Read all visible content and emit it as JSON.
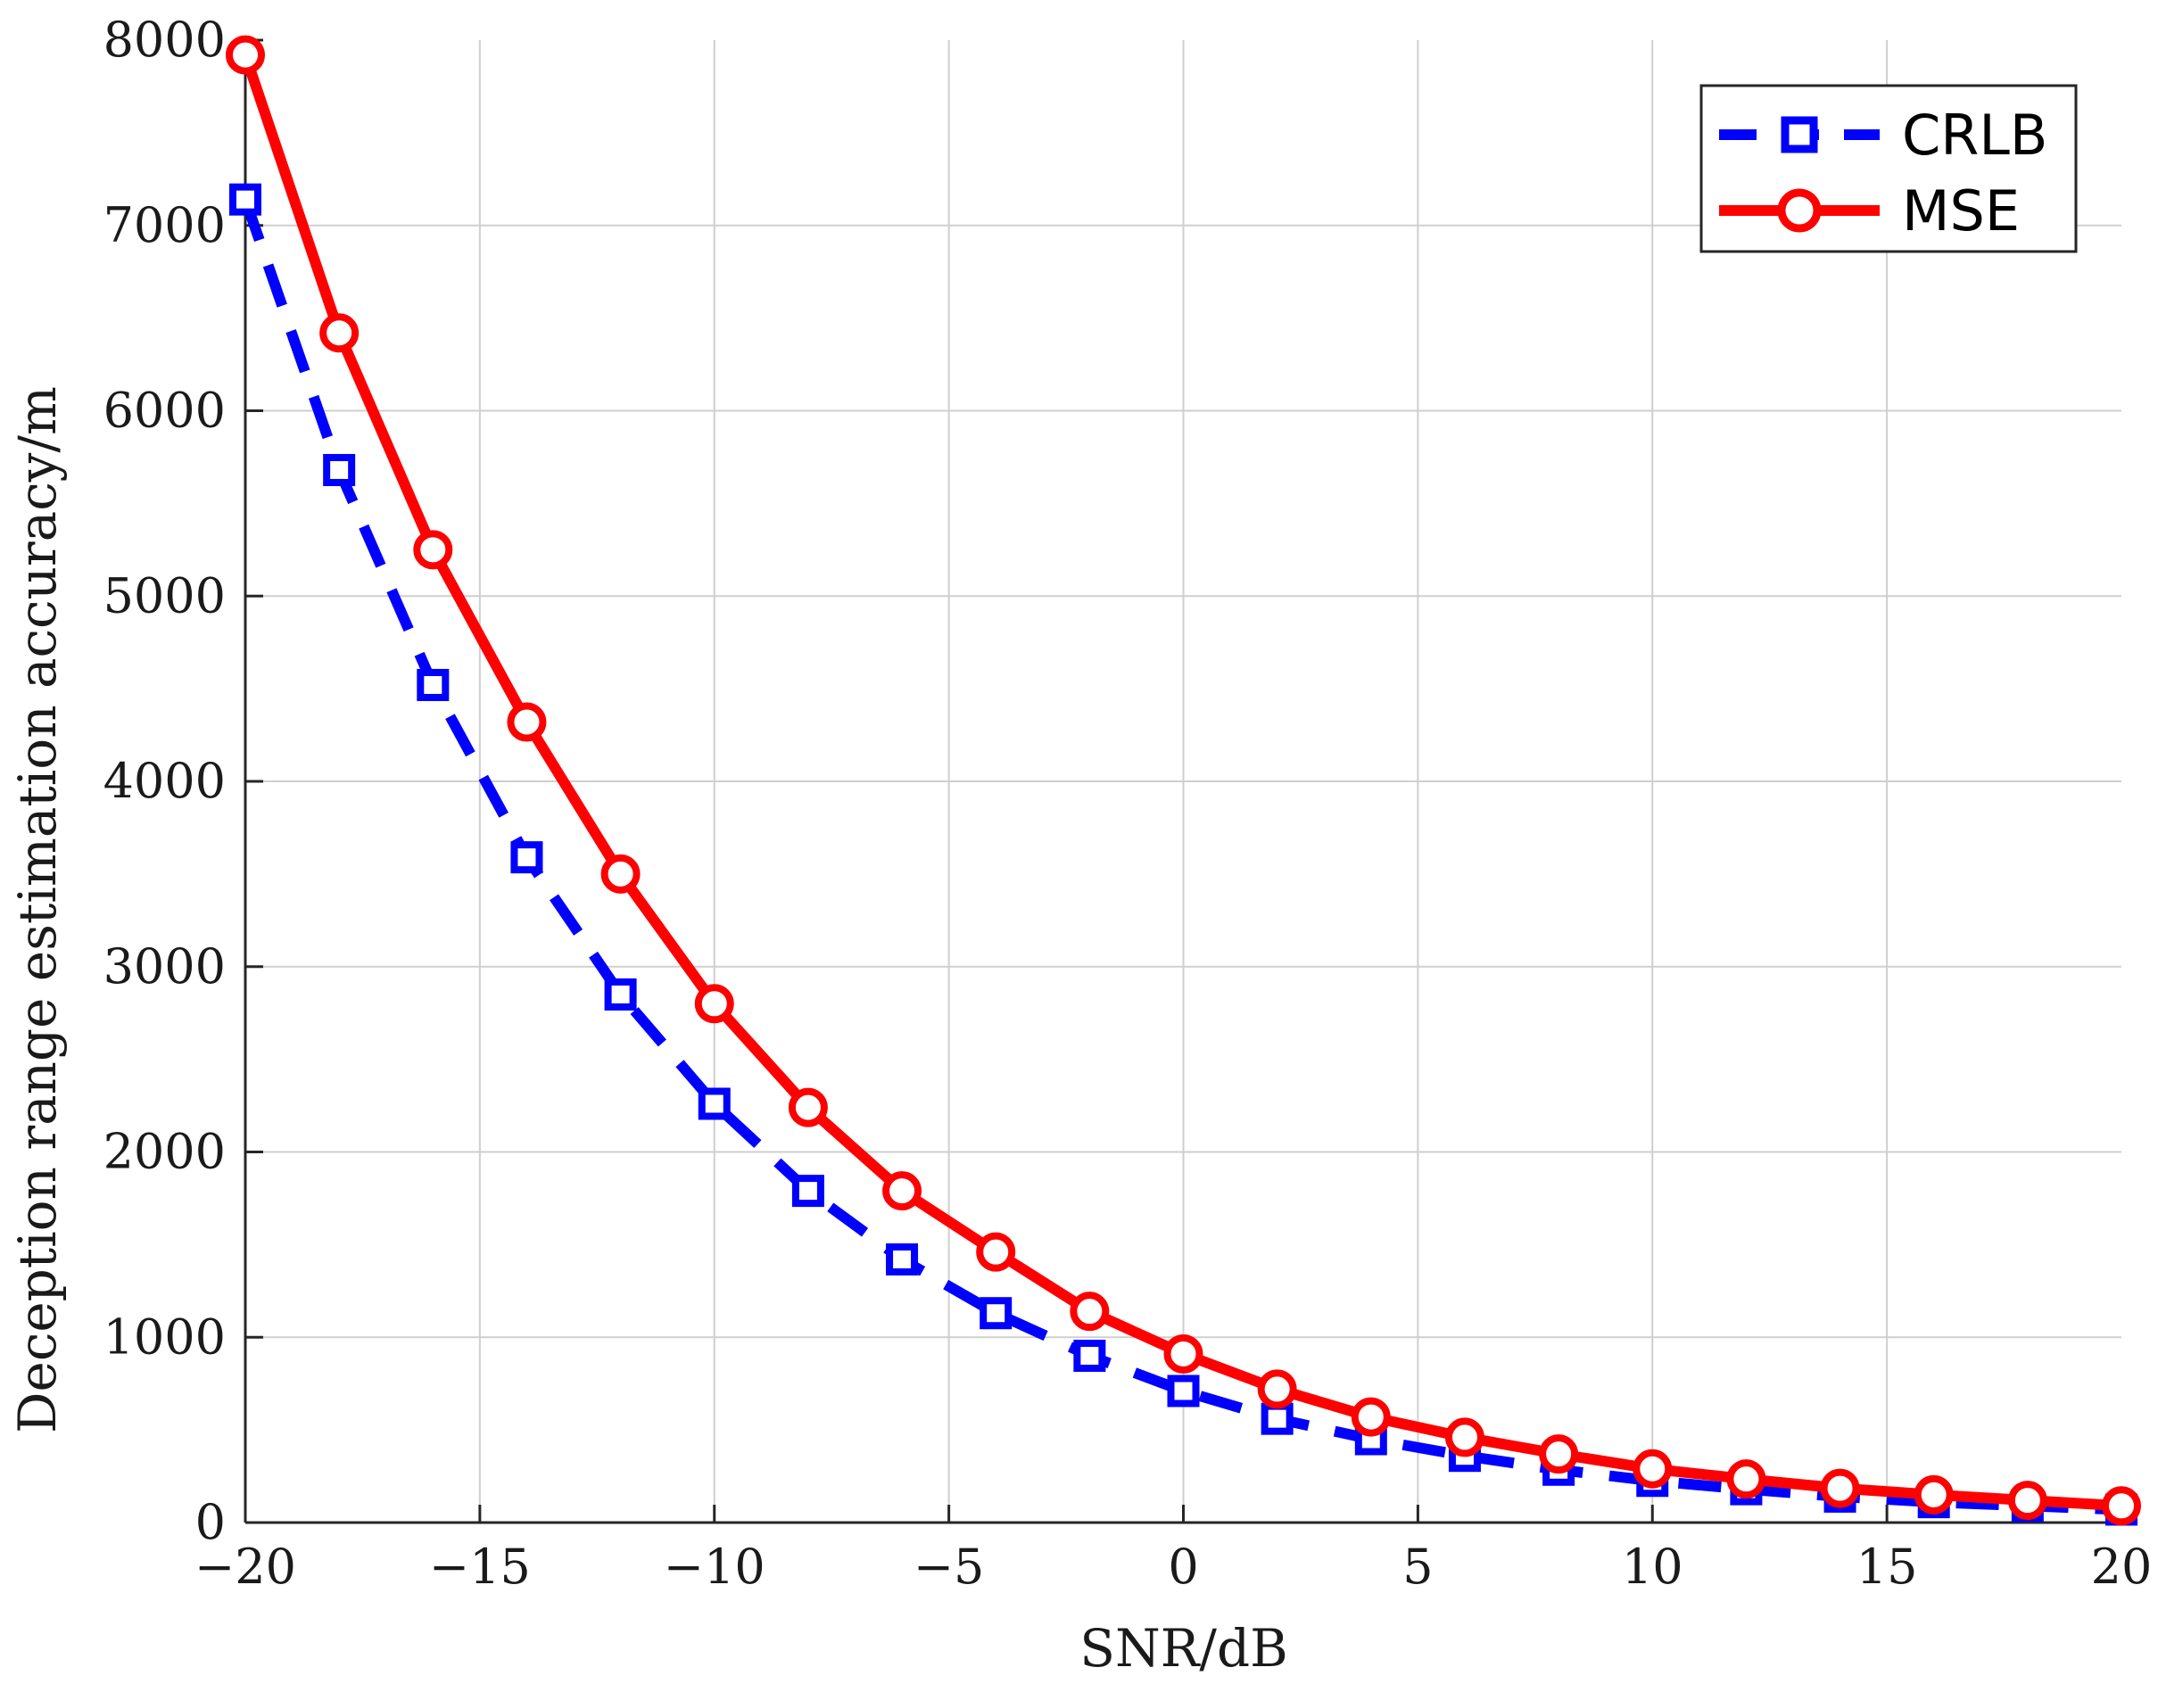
{
  "chart_data": {
    "type": "line",
    "xlabel": "SNR/dB",
    "ylabel": "Deception range estimation accuracy/m",
    "xlim": [
      -20,
      20
    ],
    "ylim": [
      0,
      8000
    ],
    "xticks": [
      -20,
      -15,
      -10,
      -5,
      0,
      5,
      10,
      15,
      20
    ],
    "xtick_labels": [
      "−20",
      "−15",
      "−10",
      "−5",
      "0",
      "5",
      "10",
      "15",
      "20"
    ],
    "yticks": [
      0,
      1000,
      2000,
      3000,
      4000,
      5000,
      6000,
      7000,
      8000
    ],
    "ytick_labels": [
      "0",
      "1000",
      "2000",
      "3000",
      "4000",
      "5000",
      "6000",
      "7000",
      "8000"
    ],
    "grid": true,
    "legend_position": "top-right",
    "x": [
      -20,
      -18,
      -16,
      -14,
      -12,
      -10,
      -8,
      -6,
      -4,
      -2,
      0,
      2,
      4,
      6,
      8,
      10,
      12,
      14,
      16,
      18,
      20
    ],
    "series": [
      {
        "name": "CRLB",
        "color": "#0000ff",
        "line_style": "dashed",
        "marker": "square",
        "values": [
          7140,
          5680,
          4520,
          3590,
          2850,
          2260,
          1790,
          1420,
          1130,
          900,
          710,
          560,
          450,
          360,
          285,
          225,
          180,
          140,
          110,
          90,
          70
        ]
      },
      {
        "name": "MSE",
        "color": "#ff0000",
        "line_style": "solid",
        "marker": "circle",
        "values": [
          7920,
          6420,
          5250,
          4320,
          3500,
          2800,
          2240,
          1790,
          1460,
          1140,
          910,
          720,
          570,
          460,
          370,
          290,
          235,
          185,
          150,
          120,
          90
        ]
      }
    ]
  }
}
